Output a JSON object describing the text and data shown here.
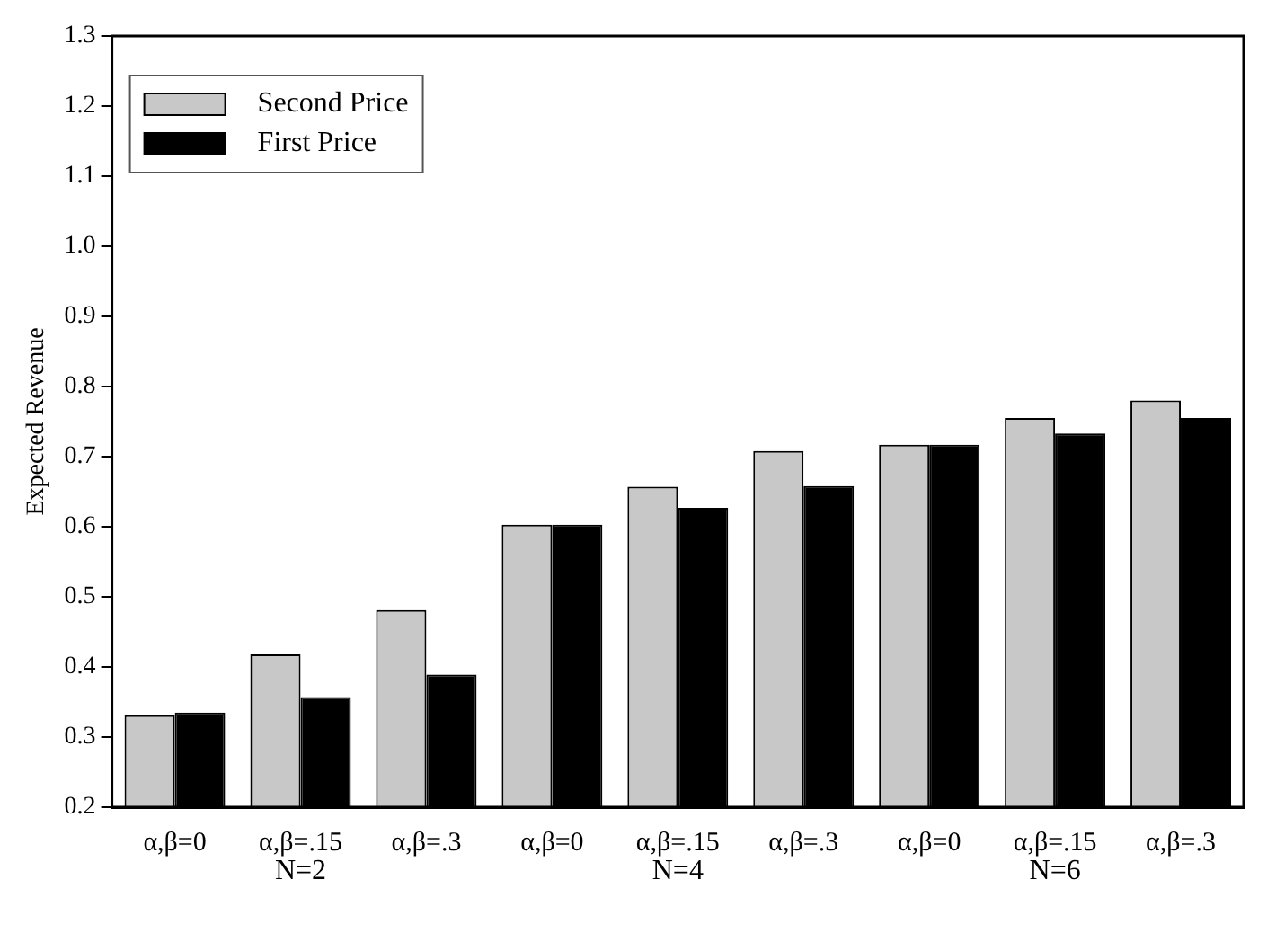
{
  "chart_data": {
    "type": "bar",
    "ylabel": "Expected Revenue",
    "categories": [
      "α,β=0",
      "α,β=.15",
      "α,β=.3",
      "α,β=0",
      "α,β=.15",
      "α,β=.3",
      "α,β=0",
      "α,β=.15",
      "α,β=.3"
    ],
    "series": [
      {
        "name": "Second Price",
        "color": "#c8c8c8",
        "values": [
          0.331,
          0.418,
          0.481,
          0.603,
          0.657,
          0.708,
          0.717,
          0.755,
          0.78
        ]
      },
      {
        "name": "First Price",
        "color": "#000000",
        "values": [
          0.335,
          0.357,
          0.389,
          0.603,
          0.627,
          0.658,
          0.717,
          0.733,
          0.755
        ]
      }
    ],
    "annotations": [
      "N=2",
      "N=4",
      "N=6"
    ],
    "ylim": [
      0.2,
      1.3
    ],
    "yticks": [
      {
        "value": 0.2,
        "label": "0.2"
      },
      {
        "value": 0.3,
        "label": "0.3"
      },
      {
        "value": 0.4,
        "label": "0.4"
      },
      {
        "value": 0.5,
        "label": "0.5"
      },
      {
        "value": 0.6,
        "label": "0.6"
      },
      {
        "value": 0.7,
        "label": "0.7"
      },
      {
        "value": 0.8,
        "label": "0.8"
      },
      {
        "value": 0.9,
        "label": "0.9"
      },
      {
        "value": 1.0,
        "label": "1.0"
      },
      {
        "value": 1.1,
        "label": "1.1"
      },
      {
        "value": 1.2,
        "label": "1.2"
      },
      {
        "value": 1.3,
        "label": "1.3"
      }
    ],
    "grid": false,
    "legend": "top left"
  }
}
